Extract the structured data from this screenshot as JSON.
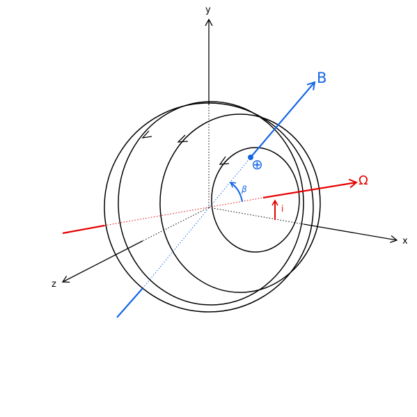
{
  "axes": {
    "x_label": "x",
    "y_label": "y",
    "z_label": "z"
  },
  "vectors": {
    "magnetic_axis_label": "B",
    "rotation_axis_label": "Ω",
    "inclination_label": "i",
    "obliquity_label": "β",
    "pole_marker": "⊕"
  },
  "colors": {
    "line": "#000000",
    "magnetic": "#1466e6",
    "rotation": "#e60000"
  }
}
